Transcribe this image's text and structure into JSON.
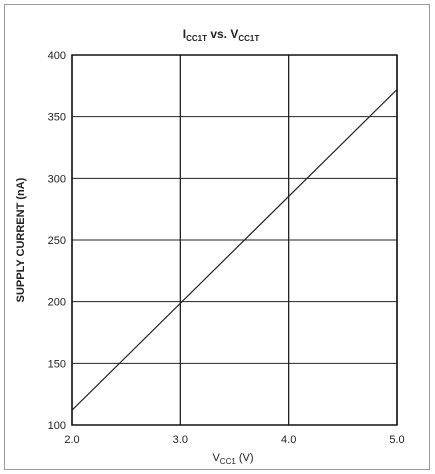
{
  "chart_data": {
    "type": "line",
    "title": {
      "main": "I",
      "sub": "CC1T",
      "mid": " vs. V",
      "sub2": "CC1T"
    },
    "ylabel": "SUPPLY CURRENT (nA)",
    "xlabel": {
      "main": "V",
      "sub": "CC1",
      "unit": " (V)"
    },
    "xlim": [
      2.0,
      5.0
    ],
    "ylim": [
      100,
      400
    ],
    "xticks": [
      "2.0",
      "3.0",
      "4.0",
      "5.0"
    ],
    "yticks": [
      "100",
      "150",
      "200",
      "250",
      "300",
      "350",
      "400"
    ],
    "grid": true,
    "series": [
      {
        "x": [
          2.0,
          5.0
        ],
        "y": [
          112,
          372
        ]
      }
    ]
  }
}
